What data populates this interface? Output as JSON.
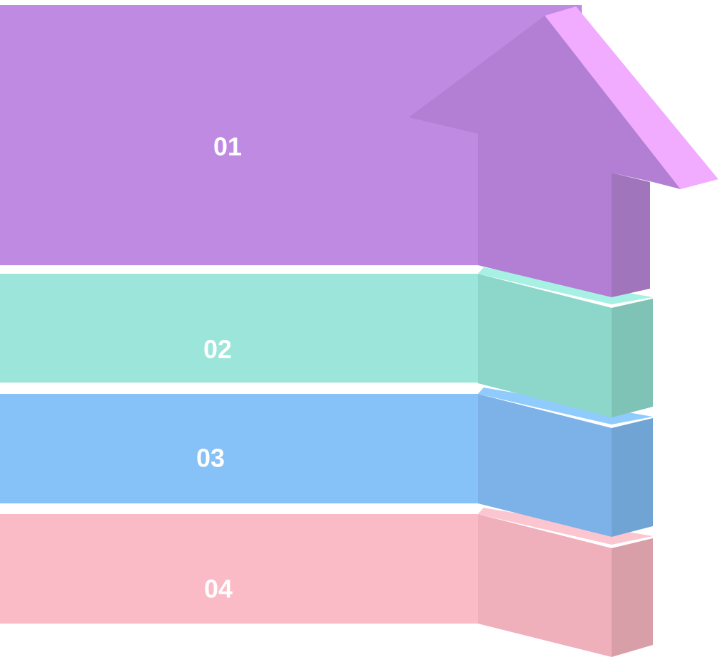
{
  "diagram": {
    "type": "stacked-3d-arrow-infographic",
    "arrow_direction": "up",
    "steps": [
      {
        "label": "01",
        "color": "#bf8ae2",
        "side_color": "#b27fd4",
        "edge_color": "#a075bc",
        "top_color": "#f1abff"
      },
      {
        "label": "02",
        "color": "#9be5da",
        "side_color": "#8dd6ca",
        "edge_color": "#7fc2b6",
        "top_color": "#a6f0e4"
      },
      {
        "label": "03",
        "color": "#86c1f7",
        "side_color": "#7db2e8",
        "edge_color": "#6fa4d4",
        "top_color": "#8fccfd"
      },
      {
        "label": "04",
        "color": "#fbbbc6",
        "side_color": "#efafbb",
        "edge_color": "#d99fa9",
        "top_color": "#fbc6cf"
      }
    ]
  }
}
